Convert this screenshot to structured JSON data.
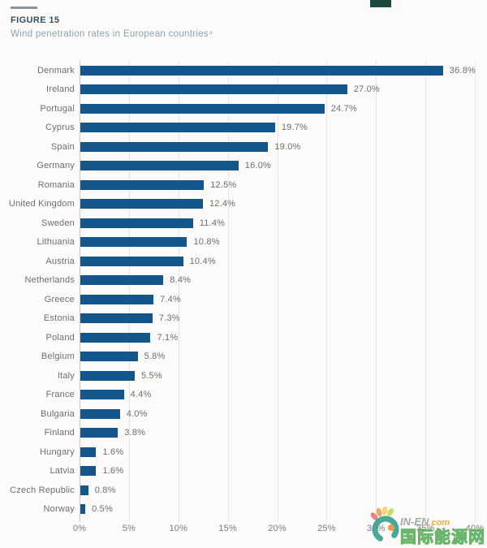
{
  "figure": {
    "label": "FIGURE 15",
    "title": "Wind penetration rates in European countries⁴"
  },
  "chart_data": {
    "type": "bar",
    "orientation": "horizontal",
    "title": "Wind penetration rates in European countries",
    "categories": [
      "Denmark",
      "Ireland",
      "Portugal",
      "Cyprus",
      "Spain",
      "Germany",
      "Romania",
      "United Kingdom",
      "Sweden",
      "Lithuania",
      "Austria",
      "Netherlands",
      "Greece",
      "Estonia",
      "Poland",
      "Belgium",
      "Italy",
      "France",
      "Bulgaria",
      "Finland",
      "Hungary",
      "Latvia",
      "Czech Republic",
      "Norway"
    ],
    "values": [
      36.8,
      27.0,
      24.7,
      19.7,
      19.0,
      16.0,
      12.5,
      12.4,
      11.4,
      10.8,
      10.4,
      8.4,
      7.4,
      7.3,
      7.1,
      5.8,
      5.5,
      4.4,
      4.0,
      3.8,
      1.6,
      1.6,
      0.8,
      0.5
    ],
    "value_labels": [
      "36.8%",
      "27.0%",
      "24.7%",
      "19.7%",
      "19.0%",
      "16.0%",
      "12.5%",
      "12.4%",
      "11.4%",
      "10.8%",
      "10.4%",
      "8.4%",
      "7.4%",
      "7.3%",
      "7.1%",
      "5.8%",
      "5.5%",
      "4.4%",
      "4.0%",
      "3.8%",
      "1.6%",
      "1.6%",
      "0.8%",
      "0.5%"
    ],
    "x_ticks": [
      "0%",
      "5%",
      "10%",
      "15%",
      "20%",
      "25%",
      "30%",
      "35%",
      "40%"
    ],
    "xlim": [
      0,
      40
    ],
    "grid": true,
    "legend": false,
    "bar_color": "#12568c"
  },
  "watermark": {
    "brand_en": "IN-EN",
    "brand_suffix": ".com",
    "brand_cn": "国际能源网"
  },
  "colors": {
    "bar": "#12568c",
    "figure_label": "#32505e",
    "figure_title": "#8ba3b4",
    "axis_text": "#7c7c7c",
    "corner_tab": "#1d4a40"
  }
}
